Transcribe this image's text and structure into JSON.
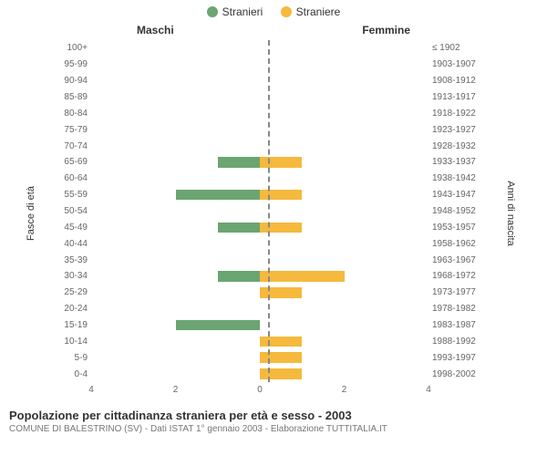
{
  "legend": {
    "series_m": {
      "label": "Stranieri",
      "color": "#6aa572"
    },
    "series_f": {
      "label": "Straniere",
      "color": "#f5b93d"
    }
  },
  "columns": {
    "left": "Maschi",
    "right": "Femmine"
  },
  "axes": {
    "left_title": "Fasce di età",
    "right_title": "Anni di nascita",
    "xmax": 4,
    "xticks_left": [
      4,
      2,
      0
    ],
    "xticks_right": [
      2,
      4
    ],
    "center_line_color": "#888888",
    "grid_color": "#e0e0e0"
  },
  "rows": [
    {
      "age": "100+",
      "birth": "≤ 1902",
      "m": 0,
      "f": 0
    },
    {
      "age": "95-99",
      "birth": "1903-1907",
      "m": 0,
      "f": 0
    },
    {
      "age": "90-94",
      "birth": "1908-1912",
      "m": 0,
      "f": 0
    },
    {
      "age": "85-89",
      "birth": "1913-1917",
      "m": 0,
      "f": 0
    },
    {
      "age": "80-84",
      "birth": "1918-1922",
      "m": 0,
      "f": 0
    },
    {
      "age": "75-79",
      "birth": "1923-1927",
      "m": 0,
      "f": 0
    },
    {
      "age": "70-74",
      "birth": "1928-1932",
      "m": 0,
      "f": 0
    },
    {
      "age": "65-69",
      "birth": "1933-1937",
      "m": 1,
      "f": 1
    },
    {
      "age": "60-64",
      "birth": "1938-1942",
      "m": 0,
      "f": 0
    },
    {
      "age": "55-59",
      "birth": "1943-1947",
      "m": 2,
      "f": 1
    },
    {
      "age": "50-54",
      "birth": "1948-1952",
      "m": 0,
      "f": 0
    },
    {
      "age": "45-49",
      "birth": "1953-1957",
      "m": 1,
      "f": 1
    },
    {
      "age": "40-44",
      "birth": "1958-1962",
      "m": 0,
      "f": 0
    },
    {
      "age": "35-39",
      "birth": "1963-1967",
      "m": 0,
      "f": 0
    },
    {
      "age": "30-34",
      "birth": "1968-1972",
      "m": 1,
      "f": 2
    },
    {
      "age": "25-29",
      "birth": "1973-1977",
      "m": 0,
      "f": 1
    },
    {
      "age": "20-24",
      "birth": "1978-1982",
      "m": 0,
      "f": 0
    },
    {
      "age": "15-19",
      "birth": "1983-1987",
      "m": 2,
      "f": 0
    },
    {
      "age": "10-14",
      "birth": "1988-1992",
      "m": 0,
      "f": 1
    },
    {
      "age": "5-9",
      "birth": "1993-1997",
      "m": 0,
      "f": 1
    },
    {
      "age": "0-4",
      "birth": "1998-2002",
      "m": 0,
      "f": 1
    }
  ],
  "footer": {
    "title": "Popolazione per cittadinanza straniera per età e sesso - 2003",
    "subtitle": "COMUNE DI BALESTRINO (SV) - Dati ISTAT 1° gennaio 2003 - Elaborazione TUTTITALIA.IT"
  },
  "style": {
    "bg": "#ffffff",
    "text": "#333333",
    "muted": "#666666",
    "label_fontsize": 10,
    "title_fontsize": 13
  }
}
